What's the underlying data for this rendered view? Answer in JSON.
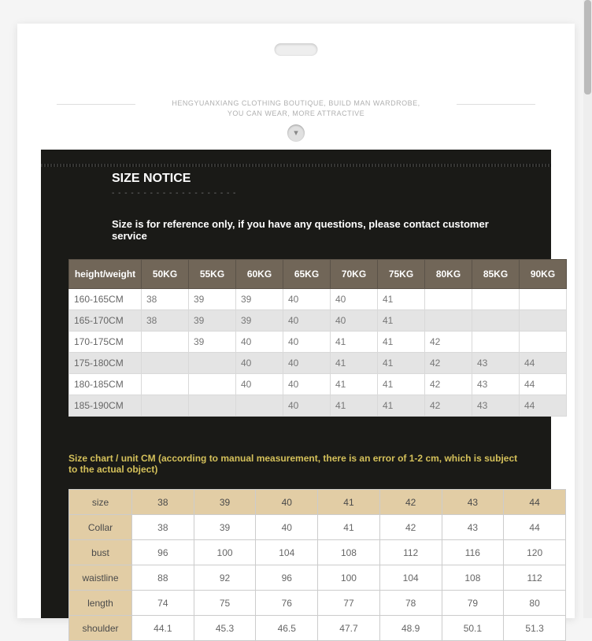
{
  "brand": {
    "line1": "HENGYUANXIANG CLOTHING BOUTIQUE, BUILD MAN WARDROBE,",
    "line2": "YOU CAN WEAR, MORE ATTRACTIVE"
  },
  "title": "SIZE NOTICE",
  "notice": "Size is for reference only, if you have any questions, please contact customer service",
  "table1": {
    "corner": "height/weight",
    "weights": [
      "50KG",
      "55KG",
      "60KG",
      "65KG",
      "70KG",
      "75KG",
      "80KG",
      "85KG",
      "90KG"
    ],
    "heights": [
      "160-165CM",
      "165-170CM",
      "170-175CM",
      "175-180CM",
      "180-185CM",
      "185-190CM"
    ],
    "cells": [
      [
        "38",
        "39",
        "39",
        "40",
        "40",
        "41",
        "",
        "",
        ""
      ],
      [
        "38",
        "39",
        "39",
        "40",
        "40",
        "41",
        "",
        "",
        ""
      ],
      [
        "",
        "39",
        "40",
        "40",
        "41",
        "41",
        "42",
        "",
        ""
      ],
      [
        "",
        "",
        "40",
        "40",
        "41",
        "41",
        "42",
        "43",
        "44"
      ],
      [
        "",
        "",
        "40",
        "40",
        "41",
        "41",
        "42",
        "43",
        "44"
      ],
      [
        "",
        "",
        "",
        "40",
        "41",
        "41",
        "42",
        "43",
        "44"
      ]
    ]
  },
  "note2": "Size chart / unit CM (according to manual measurement, there is an error of 1-2 cm, which is subject to the actual object)",
  "table2": {
    "header": [
      "size",
      "38",
      "39",
      "40",
      "41",
      "42",
      "43",
      "44"
    ],
    "rows": [
      [
        "Collar",
        "38",
        "39",
        "40",
        "41",
        "42",
        "43",
        "44"
      ],
      [
        "bust",
        "96",
        "100",
        "104",
        "108",
        "112",
        "116",
        "120"
      ],
      [
        "waistline",
        "88",
        "92",
        "96",
        "100",
        "104",
        "108",
        "112"
      ],
      [
        "length",
        "74",
        "75",
        "76",
        "77",
        "78",
        "79",
        "80"
      ],
      [
        "shoulder",
        "44.1",
        "45.3",
        "46.5",
        "47.7",
        "48.9",
        "50.1",
        "51.3"
      ]
    ]
  }
}
